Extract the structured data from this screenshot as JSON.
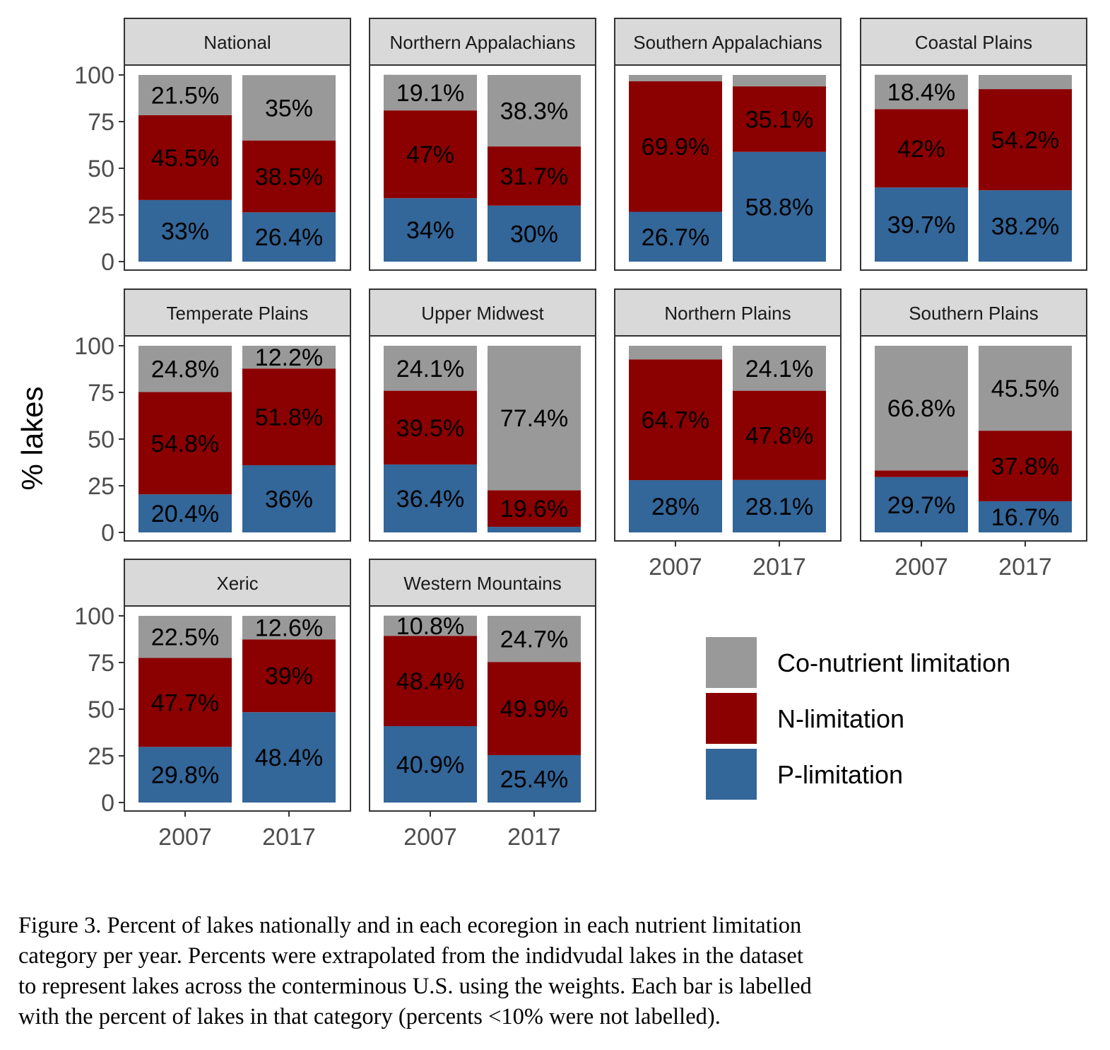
{
  "chart_data": {
    "type": "bar",
    "stacked": true,
    "ylabel": "% lakes",
    "ylim": [
      0,
      100
    ],
    "yticks": [
      0,
      25,
      50,
      75,
      100
    ],
    "categories": [
      "2007",
      "2017"
    ],
    "legend": {
      "position": "right-bottom",
      "entries": [
        {
          "name": "Co-nutrient limitation",
          "color": "#999999"
        },
        {
          "name": "N-limitation",
          "color": "#8b0000"
        },
        {
          "name": "P-limitation",
          "color": "#336699"
        }
      ]
    },
    "panels": [
      {
        "title": "National",
        "P": [
          33,
          26.4
        ],
        "N": [
          45.5,
          38.5
        ],
        "Co": [
          21.5,
          35
        ],
        "P_labels": [
          "33%",
          "26.4%"
        ],
        "N_labels": [
          "45.5%",
          "38.5%"
        ],
        "Co_labels": [
          "21.5%",
          "35%"
        ]
      },
      {
        "title": "Northern Appalachians",
        "P": [
          34,
          30
        ],
        "N": [
          47,
          31.7
        ],
        "Co": [
          19.1,
          38.3
        ],
        "P_labels": [
          "34%",
          "30%"
        ],
        "N_labels": [
          "47%",
          "31.7%"
        ],
        "Co_labels": [
          "19.1%",
          "38.3%"
        ]
      },
      {
        "title": "Southern Appalachians",
        "P": [
          26.7,
          58.8
        ],
        "N": [
          69.9,
          35.1
        ],
        "Co": [
          3.4,
          6.1
        ],
        "P_labels": [
          "26.7%",
          "58.8%"
        ],
        "N_labels": [
          "69.9%",
          "35.1%"
        ],
        "Co_labels": [
          "",
          ""
        ]
      },
      {
        "title": "Coastal Plains",
        "P": [
          39.7,
          38.2
        ],
        "N": [
          42,
          54.2
        ],
        "Co": [
          18.4,
          7.6
        ],
        "P_labels": [
          "39.7%",
          "38.2%"
        ],
        "N_labels": [
          "42%",
          "54.2%"
        ],
        "Co_labels": [
          "18.4%",
          ""
        ]
      },
      {
        "title": "Temperate Plains",
        "P": [
          20.4,
          36
        ],
        "N": [
          54.8,
          51.8
        ],
        "Co": [
          24.8,
          12.2
        ],
        "P_labels": [
          "20.4%",
          "36%"
        ],
        "N_labels": [
          "54.8%",
          "51.8%"
        ],
        "Co_labels": [
          "24.8%",
          "12.2%"
        ]
      },
      {
        "title": "Upper Midwest",
        "P": [
          36.4,
          3
        ],
        "N": [
          39.5,
          19.6
        ],
        "Co": [
          24.1,
          77.4
        ],
        "P_labels": [
          "36.4%",
          ""
        ],
        "N_labels": [
          "39.5%",
          "19.6%"
        ],
        "Co_labels": [
          "24.1%",
          "77.4%"
        ]
      },
      {
        "title": "Northern Plains",
        "P": [
          28,
          28.1
        ],
        "N": [
          64.7,
          47.8
        ],
        "Co": [
          7.3,
          24.1
        ],
        "P_labels": [
          "28%",
          "28.1%"
        ],
        "N_labels": [
          "64.7%",
          "47.8%"
        ],
        "Co_labels": [
          "",
          "24.1%"
        ]
      },
      {
        "title": "Southern Plains",
        "P": [
          29.7,
          16.7
        ],
        "N": [
          3.5,
          37.8
        ],
        "Co": [
          66.8,
          45.5
        ],
        "P_labels": [
          "29.7%",
          "16.7%"
        ],
        "N_labels": [
          "",
          "37.8%"
        ],
        "Co_labels": [
          "66.8%",
          "45.5%"
        ]
      },
      {
        "title": "Xeric",
        "P": [
          29.8,
          48.4
        ],
        "N": [
          47.7,
          39
        ],
        "Co": [
          22.5,
          12.6
        ],
        "P_labels": [
          "29.8%",
          "48.4%"
        ],
        "N_labels": [
          "47.7%",
          "39%"
        ],
        "Co_labels": [
          "22.5%",
          "12.6%"
        ]
      },
      {
        "title": "Western Mountains",
        "P": [
          40.9,
          25.4
        ],
        "N": [
          48.4,
          49.9
        ],
        "Co": [
          10.8,
          24.7
        ],
        "P_labels": [
          "40.9%",
          "25.4%"
        ],
        "N_labels": [
          "48.4%",
          "49.9%"
        ],
        "Co_labels": [
          "10.8%",
          "24.7%"
        ]
      }
    ]
  },
  "caption": "Figure 3. Percent of lakes nationally and in each ecoregion in each nutrient limitation\ncategory per year. Percents were extrapolated from the indidvudal lakes in the dataset\nto represent lakes across the conterminous U.S. using the weights. Each bar is labelled\nwith the percent of lakes in that category (percents <10% were not labelled)."
}
